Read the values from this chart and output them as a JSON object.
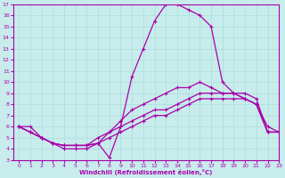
{
  "xlabel": "Windchill (Refroidissement éolien,°C)",
  "xlim": [
    -0.5,
    23
  ],
  "ylim": [
    3,
    17
  ],
  "xticks": [
    0,
    1,
    2,
    3,
    4,
    5,
    6,
    7,
    8,
    9,
    10,
    11,
    12,
    13,
    14,
    15,
    16,
    17,
    18,
    19,
    20,
    21,
    22,
    23
  ],
  "yticks": [
    3,
    4,
    5,
    6,
    7,
    8,
    9,
    10,
    11,
    12,
    13,
    14,
    15,
    16,
    17
  ],
  "bg_color": "#c8ecec",
  "line_color": "#aa00aa",
  "grid_color": "#aadddd",
  "line1_x": [
    0,
    1,
    2,
    3,
    4,
    5,
    6,
    7,
    8,
    9,
    10,
    11,
    12,
    13,
    14,
    15,
    16,
    17,
    18,
    19,
    20,
    21,
    22,
    23
  ],
  "line1_y": [
    6,
    6,
    5,
    4.5,
    4,
    4,
    4,
    4.5,
    3.2,
    6,
    10.5,
    13,
    15.5,
    17,
    17,
    16.5,
    16,
    15,
    10,
    9,
    8.5,
    8,
    6,
    5.5
  ],
  "line2_x": [
    0,
    1,
    2,
    3,
    4,
    5,
    6,
    7,
    8,
    9,
    10,
    11,
    12,
    13,
    14,
    15,
    16,
    17,
    18,
    19,
    20,
    21,
    22,
    23
  ],
  "line2_y": [
    6,
    5.5,
    5,
    4.5,
    4.3,
    4.3,
    4.3,
    4.5,
    5.5,
    6.5,
    7.5,
    8,
    8.5,
    9,
    9.5,
    9.5,
    10,
    9.5,
    9,
    9,
    8.5,
    8,
    5.5,
    5.5
  ],
  "line3_x": [
    0,
    1,
    2,
    3,
    4,
    5,
    6,
    7,
    8,
    9,
    10,
    11,
    12,
    13,
    14,
    15,
    16,
    17,
    18,
    19,
    20,
    21,
    22,
    23
  ],
  "line3_y": [
    6,
    5.5,
    5,
    4.5,
    4.3,
    4.3,
    4.3,
    5,
    5.5,
    6,
    6.5,
    7,
    7.5,
    7.5,
    8,
    8.5,
    9,
    9,
    9,
    9,
    9,
    8.5,
    5.5,
    5.5
  ],
  "line4_x": [
    0,
    1,
    2,
    3,
    4,
    5,
    6,
    7,
    8,
    9,
    10,
    11,
    12,
    13,
    14,
    15,
    16,
    17,
    18,
    19,
    20,
    21,
    22,
    23
  ],
  "line4_y": [
    6,
    5.5,
    5,
    4.5,
    4.3,
    4.3,
    4.3,
    4.5,
    5,
    5.5,
    6,
    6.5,
    7,
    7,
    7.5,
    8,
    8.5,
    8.5,
    8.5,
    8.5,
    8.5,
    8,
    5.5,
    5.5
  ]
}
